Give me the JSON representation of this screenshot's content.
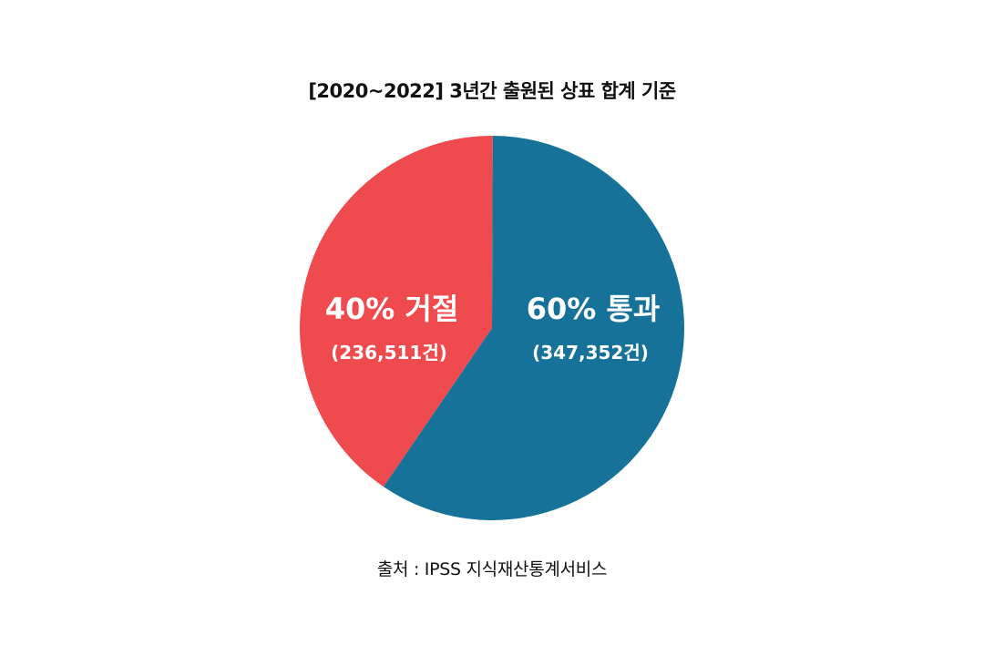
{
  "chart_data": {
    "type": "pie",
    "title": "[2020~2022] 3년간 출원된 상표 합계 기준",
    "slices": [
      {
        "label": "통과",
        "percent_label": "60% 통과",
        "count_label": "(347,352건)",
        "value": 347352,
        "color": "#167299"
      },
      {
        "label": "거절",
        "percent_label": "40% 거절",
        "count_label": "(236,511건)",
        "value": 236511,
        "color": "#ef4b4e"
      }
    ],
    "source": "출처 : IPSS 지식재산통계서비스"
  }
}
